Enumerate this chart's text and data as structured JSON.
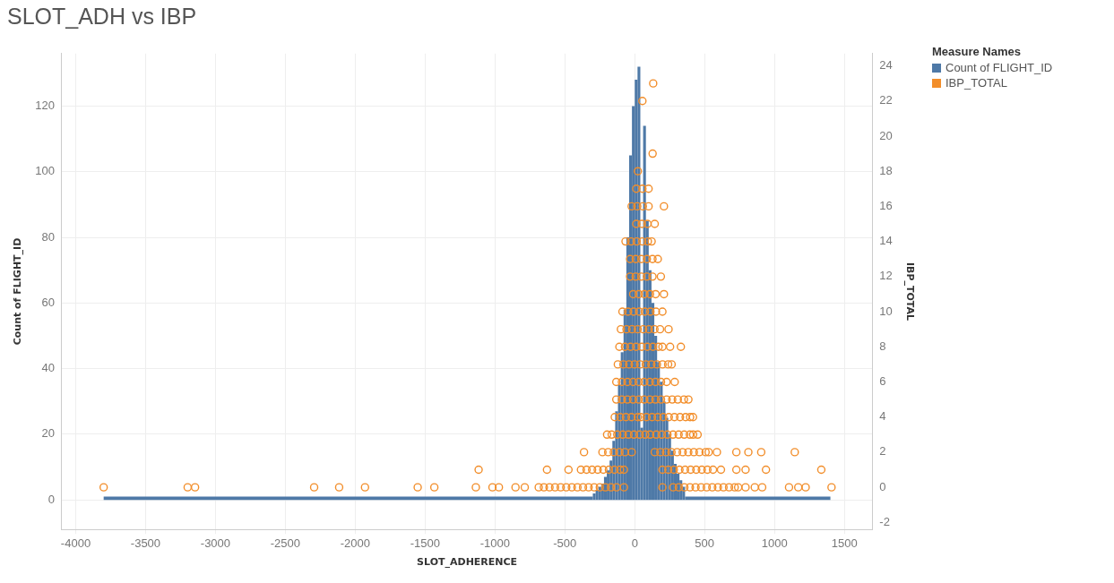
{
  "chart_data": {
    "type": "histogram",
    "title": "SLOT_ADH vs IBP",
    "xlabel": "SLOT_ADHERENCE",
    "ylabel": "Count of FLIGHT_ID",
    "y2label": "IBP_TOTAL",
    "legend_title": "Measure Names",
    "legend": "top right",
    "grid": true,
    "marker": "circle",
    "xlim": [
      -4100,
      1700
    ],
    "xticks": [
      -4000,
      -3500,
      -3000,
      -2500,
      -2000,
      -1500,
      -1000,
      -500,
      0,
      500,
      1000,
      1500
    ],
    "ylim": [
      -9,
      136
    ],
    "yticks": [
      0,
      20,
      40,
      60,
      80,
      100,
      120
    ],
    "y2lim": [
      -2.4,
      24.7
    ],
    "y2ticks": [
      -2,
      0,
      2,
      4,
      6,
      8,
      10,
      12,
      14,
      16,
      18,
      20,
      22,
      24
    ],
    "series": [
      {
        "name": "Count of FLIGHT_ID",
        "color": "#4e79a7",
        "bins": [
          -3800,
          -300,
          -280,
          -260,
          -240,
          -220,
          -200,
          -180,
          -160,
          -140,
          -120,
          -100,
          -80,
          -60,
          -40,
          -20,
          0,
          20,
          40,
          60,
          80,
          100,
          120,
          140,
          160,
          180,
          200,
          220,
          240,
          260,
          280,
          300,
          320,
          340,
          360,
          1400
        ],
        "values": [
          1,
          2,
          3,
          4,
          5,
          7,
          9,
          12,
          18,
          27,
          35,
          45,
          58,
          80,
          105,
          120,
          128,
          132,
          22,
          114,
          85,
          70,
          60,
          50,
          42,
          36,
          30,
          25,
          20,
          15,
          11,
          8,
          6,
          4,
          1
        ]
      },
      {
        "name": "IBP_TOTAL",
        "type": "scatter",
        "axis": "y2",
        "color": "#f28e2b",
        "x": [
          -3800,
          -3199,
          -3146,
          -2294,
          -2115,
          -1930,
          -1553,
          -1434,
          -1137,
          -1018,
          -972,
          -853,
          -787,
          -687,
          -650,
          -610,
          -570,
          -530,
          -490,
          -450,
          -410,
          -370,
          -330,
          -290,
          -250,
          -210,
          -170,
          -130,
          -77,
          198,
          275,
          315,
          355,
          395,
          435,
          475,
          515,
          555,
          595,
          635,
          675,
          715,
          740,
          793,
          859,
          912,
          1104,
          1170,
          1223,
          1408,
          -1117,
          -628,
          -474,
          -385,
          -345,
          -305,
          -265,
          -225,
          -185,
          -145,
          -105,
          -77,
          198,
          240,
          280,
          320,
          360,
          400,
          440,
          480,
          520,
          560,
          617,
          727,
          793,
          939,
          1335,
          -363,
          -231,
          -190,
          -150,
          -110,
          -70,
          -22,
          143,
          183,
          223,
          263,
          303,
          343,
          383,
          423,
          463,
          507,
          529,
          588,
          727,
          813,
          905,
          1145,
          -198,
          -165,
          -125,
          -85,
          -45,
          -5,
          35,
          75,
          110,
          154,
          194,
          234,
          274,
          314,
          354,
          394,
          418,
          450,
          -143,
          -103,
          -63,
          -23,
          22,
          44,
          84,
          124,
          164,
          204,
          244,
          284,
          324,
          364,
          396,
          417,
          -132,
          -92,
          -52,
          -12,
          28,
          68,
          108,
          148,
          188,
          228,
          268,
          308,
          352,
          384,
          -132,
          -92,
          -52,
          -12,
          28,
          68,
          108,
          148,
          188,
          228,
          286,
          -121,
          -81,
          -41,
          -1,
          39,
          79,
          119,
          159,
          199,
          239,
          264,
          -110,
          -70,
          -30,
          10,
          50,
          90,
          130,
          170,
          198,
          253,
          330,
          -99,
          -59,
          -19,
          21,
          61,
          101,
          141,
          181,
          242,
          -88,
          -48,
          -8,
          32,
          72,
          112,
          152,
          198,
          -11,
          29,
          69,
          109,
          149,
          209,
          -33,
          7,
          47,
          87,
          127,
          187,
          -33,
          7,
          47,
          87,
          127,
          165,
          -66,
          -26,
          14,
          54,
          94,
          121,
          11,
          51,
          91,
          143,
          -22,
          18,
          58,
          99,
          209,
          11,
          55,
          99,
          22,
          128,
          55,
          132
        ],
        "values": [
          0,
          0,
          0,
          0,
          0,
          0,
          0,
          0,
          0,
          0,
          0,
          0,
          0,
          0,
          0,
          0,
          0,
          0,
          0,
          0,
          0,
          0,
          0,
          0,
          0,
          0,
          0,
          0,
          0,
          0,
          0,
          0,
          0,
          0,
          0,
          0,
          0,
          0,
          0,
          0,
          0,
          0,
          0,
          0,
          0,
          0,
          0,
          0,
          0,
          0,
          1,
          1,
          1,
          1,
          1,
          1,
          1,
          1,
          1,
          1,
          1,
          1,
          1,
          1,
          1,
          1,
          1,
          1,
          1,
          1,
          1,
          1,
          1,
          1,
          1,
          1,
          1,
          2,
          2,
          2,
          2,
          2,
          2,
          2,
          2,
          2,
          2,
          2,
          2,
          2,
          2,
          2,
          2,
          2,
          2,
          2,
          2,
          2,
          2,
          2,
          3,
          3,
          3,
          3,
          3,
          3,
          3,
          3,
          3,
          3,
          3,
          3,
          3,
          3,
          3,
          3,
          3,
          3,
          4,
          4,
          4,
          4,
          4,
          4,
          4,
          4,
          4,
          4,
          4,
          4,
          4,
          4,
          4,
          4,
          5,
          5,
          5,
          5,
          5,
          5,
          5,
          5,
          5,
          5,
          5,
          5,
          5,
          5,
          6,
          6,
          6,
          6,
          6,
          6,
          6,
          6,
          6,
          6,
          6,
          7,
          7,
          7,
          7,
          7,
          7,
          7,
          7,
          7,
          7,
          7,
          8,
          8,
          8,
          8,
          8,
          8,
          8,
          8,
          8,
          8,
          8,
          9,
          9,
          9,
          9,
          9,
          9,
          9,
          9,
          9,
          10,
          10,
          10,
          10,
          10,
          10,
          10,
          10,
          11,
          11,
          11,
          11,
          11,
          11,
          12,
          12,
          12,
          12,
          12,
          12,
          13,
          13,
          13,
          13,
          13,
          13,
          14,
          14,
          14,
          14,
          14,
          14,
          15,
          15,
          15,
          15,
          16,
          16,
          16,
          16,
          16,
          17,
          17,
          17,
          18,
          19,
          22,
          23
        ]
      }
    ]
  }
}
